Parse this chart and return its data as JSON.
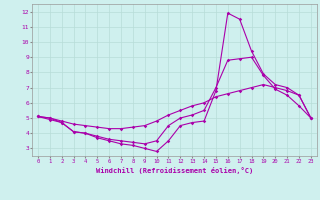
{
  "xlabel": "Windchill (Refroidissement éolien,°C)",
  "bg_color": "#cff0ee",
  "line_color": "#aa00aa",
  "grid_color": "#b8ddd8",
  "xlim": [
    -0.5,
    23.5
  ],
  "ylim": [
    2.5,
    12.5
  ],
  "xticks": [
    0,
    1,
    2,
    3,
    4,
    5,
    6,
    7,
    8,
    9,
    10,
    11,
    12,
    13,
    14,
    15,
    16,
    17,
    18,
    19,
    20,
    21,
    22,
    23
  ],
  "yticks": [
    3,
    4,
    5,
    6,
    7,
    8,
    9,
    10,
    11,
    12
  ],
  "series": [
    [
      5.1,
      5.0,
      4.7,
      4.1,
      4.0,
      3.7,
      3.5,
      3.3,
      3.2,
      3.0,
      2.8,
      3.5,
      4.5,
      4.7,
      4.8,
      6.8,
      11.9,
      11.5,
      9.4,
      7.9,
      7.2,
      7.0,
      6.5,
      5.0
    ],
    [
      5.1,
      4.9,
      4.7,
      4.1,
      4.0,
      3.8,
      3.6,
      3.5,
      3.4,
      3.3,
      3.5,
      4.5,
      5.0,
      5.2,
      5.5,
      7.0,
      8.8,
      8.9,
      9.0,
      7.8,
      6.9,
      6.5,
      5.8,
      5.0
    ],
    [
      5.1,
      5.0,
      4.8,
      4.6,
      4.5,
      4.4,
      4.3,
      4.3,
      4.4,
      4.5,
      4.8,
      5.2,
      5.5,
      5.8,
      6.0,
      6.4,
      6.6,
      6.8,
      7.0,
      7.2,
      7.0,
      6.8,
      6.5,
      5.0
    ]
  ]
}
